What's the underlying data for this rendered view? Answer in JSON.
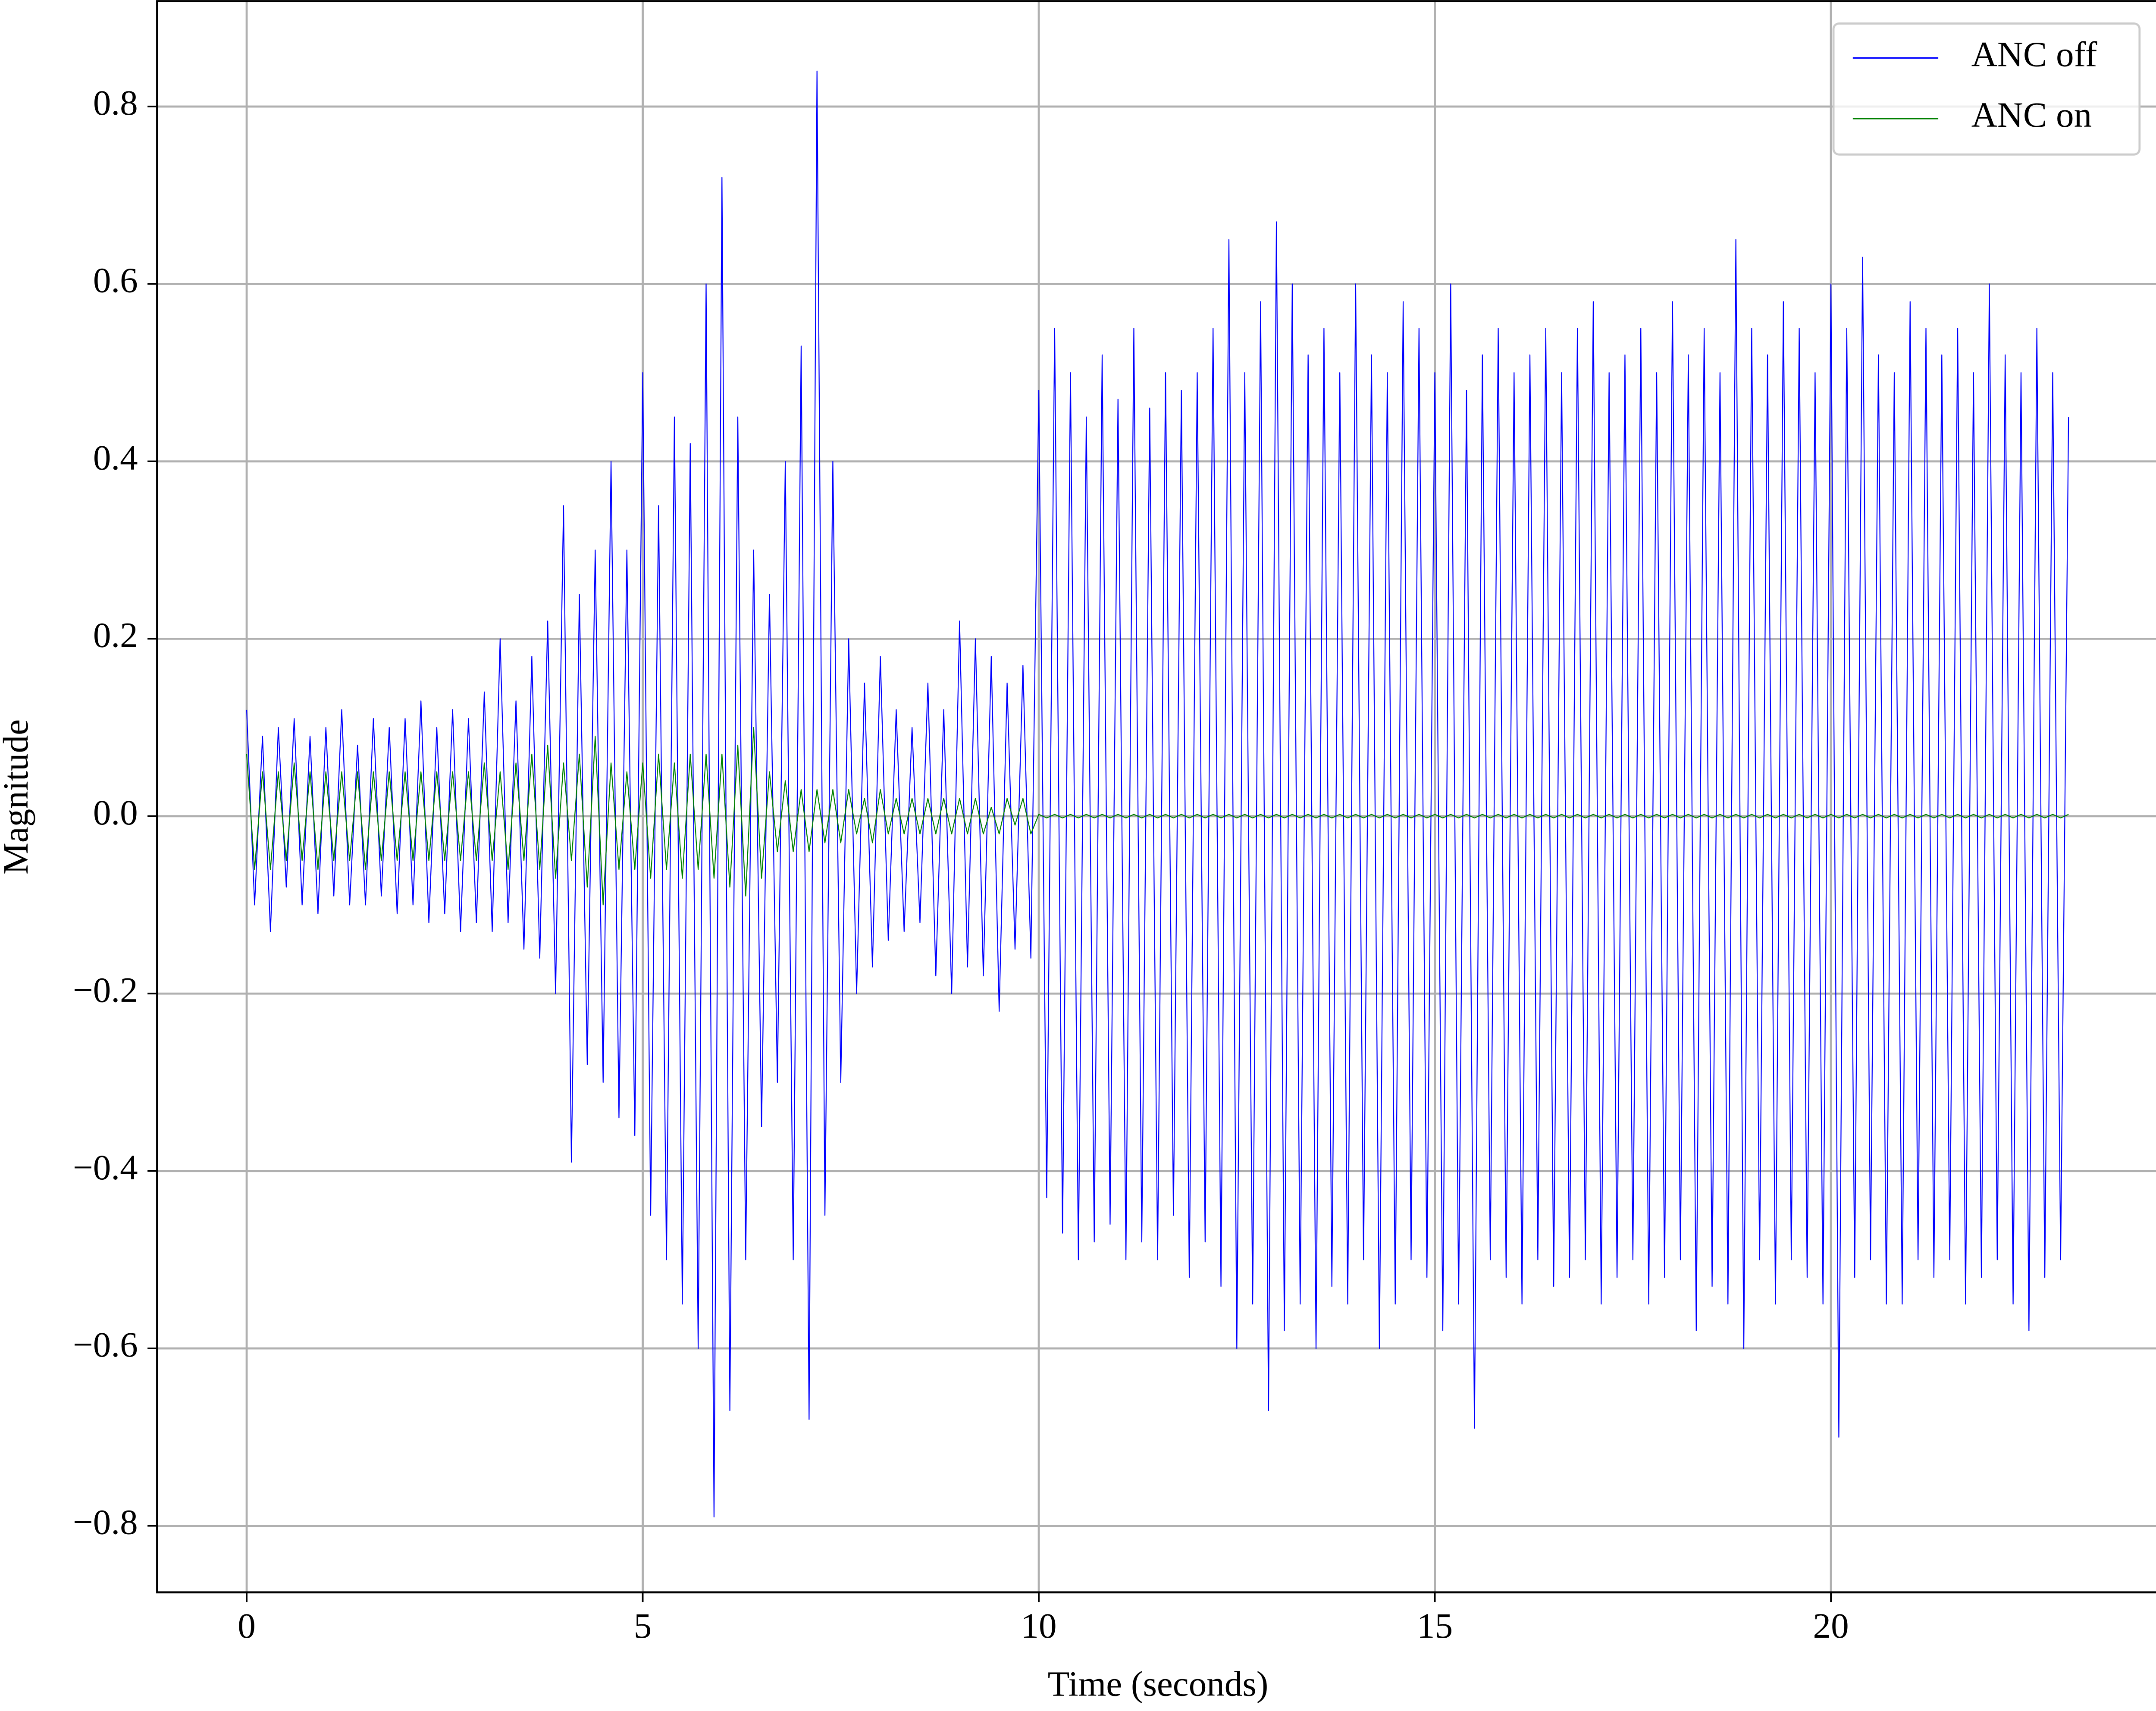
{
  "chart_data": {
    "type": "line",
    "xlabel": "Time (seconds)",
    "ylabel": "Magnitude",
    "xlim": [
      -1.13,
      24.14
    ],
    "ylim": [
      -0.875,
      0.92
    ],
    "xticks": [
      0,
      5,
      10,
      15,
      20
    ],
    "yticks": [
      {
        "value": -0.8,
        "label": "−0.8"
      },
      {
        "value": -0.6,
        "label": "−0.6"
      },
      {
        "value": -0.4,
        "label": "−0.4"
      },
      {
        "value": -0.2,
        "label": "−0.2"
      },
      {
        "value": 0,
        "label": "0.0"
      },
      0.2,
      0.4,
      0.6,
      0.8
    ],
    "grid": true,
    "legend": "upper right",
    "x": [
      0,
      0.1,
      0.2,
      0.3,
      0.4,
      0.5,
      0.6,
      0.7,
      0.8,
      0.9,
      1,
      1.1,
      1.2,
      1.3,
      1.4,
      1.5,
      1.6,
      1.7,
      1.8,
      1.9,
      2,
      2.1,
      2.2,
      2.3,
      2.4,
      2.5,
      2.6,
      2.7,
      2.8,
      2.9,
      3,
      3.1,
      3.2,
      3.3,
      3.4,
      3.5,
      3.6,
      3.7,
      3.8,
      3.9,
      4,
      4.1,
      4.2,
      4.3,
      4.4,
      4.5,
      4.6,
      4.7,
      4.8,
      4.9,
      5,
      5.1,
      5.2,
      5.3,
      5.4,
      5.5,
      5.6,
      5.7,
      5.8,
      5.9,
      6,
      6.1,
      6.2,
      6.3,
      6.4,
      6.5,
      6.6,
      6.7,
      6.8,
      6.9,
      7,
      7.1,
      7.2,
      7.3,
      7.4,
      7.5,
      7.6,
      7.7,
      7.8,
      7.9,
      8,
      8.1,
      8.2,
      8.3,
      8.4,
      8.5,
      8.6,
      8.7,
      8.8,
      8.9,
      9,
      9.1,
      9.2,
      9.3,
      9.4,
      9.5,
      9.6,
      9.7,
      9.8,
      9.9,
      10,
      10.1,
      10.2,
      10.3,
      10.4,
      10.5,
      10.6,
      10.7,
      10.8,
      10.9,
      11,
      11.1,
      11.2,
      11.3,
      11.4,
      11.5,
      11.6,
      11.7,
      11.8,
      11.9,
      12,
      12.1,
      12.2,
      12.3,
      12.4,
      12.5,
      12.6,
      12.7,
      12.8,
      12.9,
      13,
      13.1,
      13.2,
      13.3,
      13.4,
      13.5,
      13.6,
      13.7,
      13.8,
      13.9,
      14,
      14.1,
      14.2,
      14.3,
      14.4,
      14.5,
      14.6,
      14.7,
      14.8,
      14.9,
      15,
      15.1,
      15.2,
      15.3,
      15.4,
      15.5,
      15.6,
      15.7,
      15.8,
      15.9,
      16,
      16.1,
      16.2,
      16.3,
      16.4,
      16.5,
      16.6,
      16.7,
      16.8,
      16.9,
      17,
      17.1,
      17.2,
      17.3,
      17.4,
      17.5,
      17.6,
      17.7,
      17.8,
      17.9,
      18,
      18.1,
      18.2,
      18.3,
      18.4,
      18.5,
      18.6,
      18.7,
      18.8,
      18.9,
      19,
      19.1,
      19.2,
      19.3,
      19.4,
      19.5,
      19.6,
      19.7,
      19.8,
      19.9,
      20,
      20.1,
      20.2,
      20.3,
      20.4,
      20.5,
      20.6,
      20.7,
      20.8,
      20.9,
      21,
      21.1,
      21.2,
      21.3,
      21.4,
      21.5,
      21.6,
      21.7,
      21.8,
      21.9,
      22,
      22.1,
      22.2,
      22.3,
      22.4,
      22.5,
      22.6,
      22.7,
      22.8,
      22.9,
      23
    ],
    "series": [
      {
        "name": "ANC off",
        "color": "#0000ff",
        "values": [
          0.12,
          -0.1,
          0.09,
          -0.13,
          0.1,
          -0.08,
          0.11,
          -0.1,
          0.09,
          -0.11,
          0.1,
          -0.09,
          0.12,
          -0.1,
          0.08,
          -0.1,
          0.11,
          -0.09,
          0.1,
          -0.11,
          0.11,
          -0.1,
          0.13,
          -0.12,
          0.1,
          -0.11,
          0.12,
          -0.13,
          0.11,
          -0.12,
          0.14,
          -0.13,
          0.2,
          -0.12,
          0.13,
          -0.15,
          0.18,
          -0.16,
          0.22,
          -0.2,
          0.35,
          -0.39,
          0.25,
          -0.28,
          0.3,
          -0.3,
          0.4,
          -0.34,
          0.3,
          -0.36,
          0.5,
          -0.45,
          0.35,
          -0.5,
          0.45,
          -0.55,
          0.42,
          -0.6,
          0.6,
          -0.79,
          0.72,
          -0.67,
          0.45,
          -0.5,
          0.3,
          -0.35,
          0.25,
          -0.3,
          0.4,
          -0.5,
          0.53,
          -0.68,
          0.84,
          -0.45,
          0.4,
          -0.3,
          0.2,
          -0.2,
          0.15,
          -0.17,
          0.18,
          -0.14,
          0.12,
          -0.13,
          0.1,
          -0.12,
          0.15,
          -0.18,
          0.12,
          -0.2,
          0.22,
          -0.17,
          0.2,
          -0.18,
          0.18,
          -0.22,
          0.15,
          -0.15,
          0.17,
          -0.16,
          0.48,
          -0.43,
          0.55,
          -0.47,
          0.5,
          -0.5,
          0.45,
          -0.48,
          0.52,
          -0.46,
          0.47,
          -0.5,
          0.55,
          -0.48,
          0.46,
          -0.5,
          0.5,
          -0.45,
          0.48,
          -0.52,
          0.5,
          -0.48,
          0.55,
          -0.53,
          0.65,
          -0.6,
          0.5,
          -0.55,
          0.58,
          -0.67,
          0.67,
          -0.58,
          0.6,
          -0.55,
          0.52,
          -0.6,
          0.55,
          -0.53,
          0.5,
          -0.55,
          0.6,
          -0.5,
          0.52,
          -0.6,
          0.5,
          -0.55,
          0.58,
          -0.5,
          0.55,
          -0.52,
          0.5,
          -0.58,
          0.6,
          -0.55,
          0.48,
          -0.69,
          0.52,
          -0.5,
          0.55,
          -0.52,
          0.5,
          -0.55,
          0.52,
          -0.5,
          0.55,
          -0.53,
          0.5,
          -0.52,
          0.55,
          -0.5,
          0.58,
          -0.55,
          0.5,
          -0.52,
          0.52,
          -0.5,
          0.55,
          -0.55,
          0.5,
          -0.52,
          0.58,
          -0.5,
          0.52,
          -0.58,
          0.55,
          -0.53,
          0.5,
          -0.55,
          0.65,
          -0.6,
          0.55,
          -0.5,
          0.52,
          -0.55,
          0.58,
          -0.5,
          0.55,
          -0.52,
          0.5,
          -0.55,
          0.6,
          -0.7,
          0.55,
          -0.52,
          0.63,
          -0.5,
          0.52,
          -0.55,
          0.5,
          -0.55,
          0.58,
          -0.5,
          0.55,
          -0.52,
          0.52,
          -0.5,
          0.55,
          -0.55,
          0.5,
          -0.52,
          0.6,
          -0.5,
          0.52,
          -0.55,
          0.5,
          -0.58,
          0.55,
          -0.52,
          0.5,
          -0.5,
          0.45
        ]
      },
      {
        "name": "ANC on",
        "color": "#008000",
        "values": [
          0.07,
          -0.06,
          0.05,
          -0.06,
          0.05,
          -0.05,
          0.06,
          -0.05,
          0.05,
          -0.06,
          0.05,
          -0.05,
          0.05,
          -0.05,
          0.05,
          -0.06,
          0.05,
          -0.05,
          0.05,
          -0.05,
          0.05,
          -0.05,
          0.05,
          -0.05,
          0.05,
          -0.05,
          0.05,
          -0.05,
          0.05,
          -0.05,
          0.06,
          -0.05,
          0.05,
          -0.06,
          0.06,
          -0.05,
          0.07,
          -0.06,
          0.08,
          -0.07,
          0.06,
          -0.05,
          0.07,
          -0.08,
          0.09,
          -0.1,
          0.06,
          -0.06,
          0.05,
          -0.06,
          0.06,
          -0.07,
          0.07,
          -0.06,
          0.06,
          -0.07,
          0.07,
          -0.06,
          0.07,
          -0.07,
          0.07,
          -0.08,
          0.08,
          -0.09,
          0.1,
          -0.07,
          0.05,
          -0.04,
          0.04,
          -0.04,
          0.03,
          -0.04,
          0.03,
          -0.03,
          0.03,
          -0.03,
          0.03,
          -0.02,
          0.02,
          -0.03,
          0.03,
          -0.02,
          0.02,
          -0.02,
          0.02,
          -0.02,
          0.02,
          -0.02,
          0.02,
          -0.02,
          0.02,
          -0.02,
          0.02,
          -0.02,
          0.01,
          -0.02,
          0.02,
          -0.01,
          0.02,
          -0.02,
          0.002,
          -0.002,
          0.002,
          -0.002,
          0.002,
          -0.002,
          0.002,
          -0.002,
          0.002,
          -0.002,
          0.002,
          -0.002,
          0.002,
          -0.002,
          0.002,
          -0.002,
          0.002,
          -0.002,
          0.002,
          -0.002,
          0.002,
          -0.002,
          0.002,
          -0.002,
          0.002,
          -0.002,
          0.002,
          -0.002,
          0.002,
          -0.002,
          0.002,
          -0.002,
          0.002,
          -0.002,
          0.002,
          -0.002,
          0.002,
          -0.002,
          0.002,
          -0.002,
          0.002,
          -0.002,
          0.002,
          -0.002,
          0.002,
          -0.002,
          0.002,
          -0.002,
          0.002,
          -0.002,
          0.002,
          -0.002,
          0.002,
          -0.002,
          0.002,
          -0.002,
          0.002,
          -0.002,
          0.002,
          -0.002,
          0.002,
          -0.002,
          0.002,
          -0.002,
          0.002,
          -0.002,
          0.002,
          -0.002,
          0.002,
          -0.002,
          0.002,
          -0.002,
          0.002,
          -0.002,
          0.002,
          -0.002,
          0.002,
          -0.002,
          0.002,
          -0.002,
          0.002,
          -0.002,
          0.002,
          -0.002,
          0.002,
          -0.002,
          0.002,
          -0.002,
          0.002,
          -0.002,
          0.002,
          -0.002,
          0.002,
          -0.002,
          0.002,
          -0.002,
          0.002,
          -0.002,
          0.002,
          -0.002,
          0.002,
          -0.002,
          0.002,
          -0.002,
          0.002,
          -0.002,
          0.002,
          -0.002,
          0.002,
          -0.002,
          0.002,
          -0.002,
          0.002,
          -0.002,
          0.002,
          -0.002,
          0.002,
          -0.002,
          0.002,
          -0.002,
          0.002,
          -0.002,
          0.002,
          -0.002,
          0.002,
          -0.002,
          0.002,
          -0.002,
          0.002,
          -0.002,
          0.002
        ]
      }
    ]
  }
}
